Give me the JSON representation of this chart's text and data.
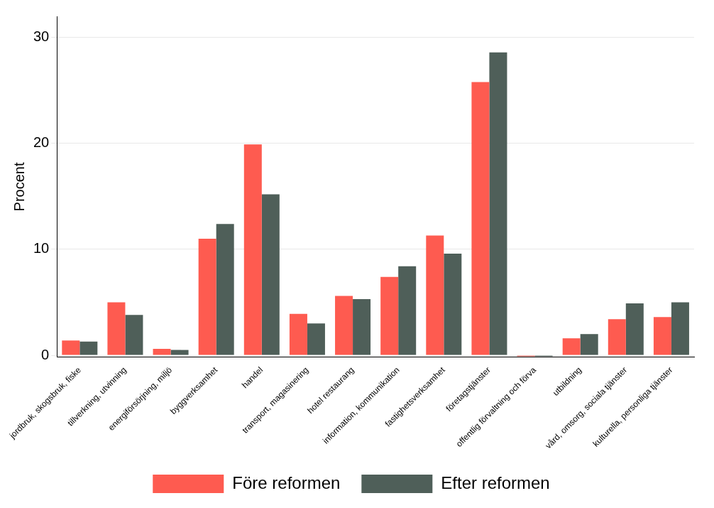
{
  "chart_data": {
    "type": "bar",
    "ylabel": "Procent",
    "categories": [
      "jordbruk, skogsbruk, fiske",
      "tillverkning, utvinning",
      "energiförsörjning, miljö",
      "byggverksamhet",
      "handel",
      "transport, magasinering",
      "hotel restaurang",
      "information, kommunikation",
      "fastighetsverksamhet",
      "företagstjänster",
      "offentlig förvaltning och förva",
      "utbildning",
      "vård, omsorg, sociala tjänster",
      "kulturella, personliga tjänster"
    ],
    "series": [
      {
        "name": "Före reformen",
        "color": "#fe5b50",
        "values": [
          1.4,
          5.0,
          0.6,
          11.0,
          19.9,
          3.9,
          5.6,
          7.4,
          11.3,
          25.8,
          -0.1,
          1.6,
          3.4,
          3.6
        ]
      },
      {
        "name": "Efter reformen",
        "color": "#4f5f59",
        "values": [
          1.3,
          3.8,
          0.5,
          12.4,
          15.2,
          3.0,
          5.3,
          8.4,
          9.6,
          28.6,
          -0.1,
          2.0,
          4.9,
          5.0
        ]
      }
    ],
    "ylim": [
      -0.2,
      32
    ],
    "yticks": [
      0,
      10,
      20,
      30
    ],
    "grid": "y",
    "legend": "bottom"
  }
}
